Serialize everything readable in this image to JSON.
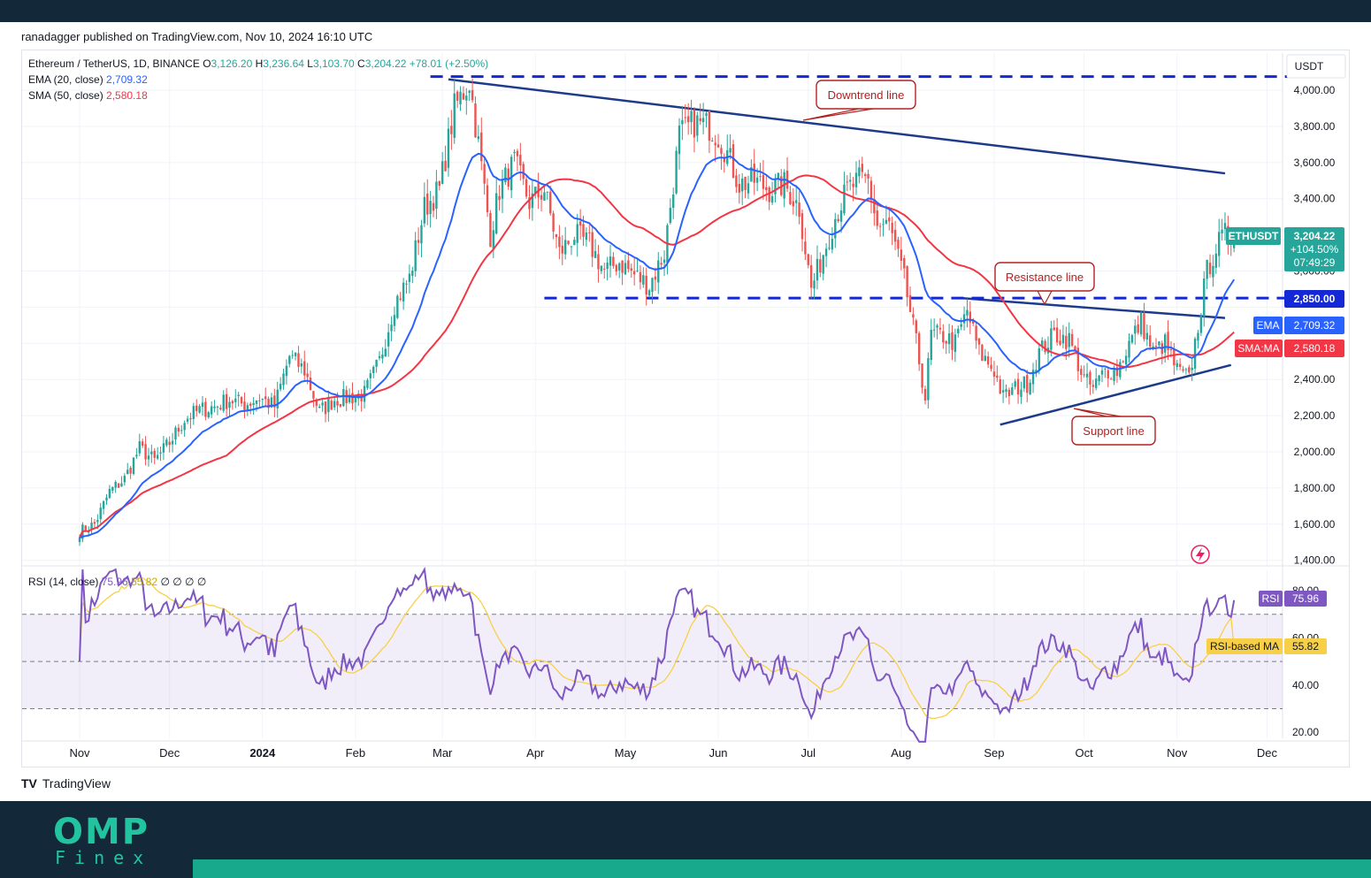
{
  "header": {
    "published": "ranadagger published on TradingView.com, Nov 10, 2024 16:10 UTC"
  },
  "legend": {
    "symbol": "Ethereum / TetherUS, 1D, BINANCE",
    "o_label": "O",
    "o": "3,126.20",
    "h_label": "H",
    "h": "3,236.64",
    "l_label": "L",
    "l": "3,103.70",
    "c_label": "C",
    "c": "3,204.22",
    "change": "+78.01 (+2.50%)",
    "ema_label": "EMA (20, close)",
    "ema_value": "2,709.32",
    "sma_label": "SMA (50, close)",
    "sma_value": "2,580.18",
    "rsi_label": "RSI (14, close)",
    "rsi_value": "75.96",
    "rsi_ma_value": "55.82",
    "rsi_empty": "∅  ∅  ∅  ∅"
  },
  "colors": {
    "up": "#26a69a",
    "down": "#ef5350",
    "ema": "#2962ff",
    "sma": "#f23645",
    "trend": "#1e3a8a",
    "level": "#1428d6",
    "rsi": "#7e57c2",
    "rsi_ma": "#f7d047",
    "callout": "#b22222",
    "bg_dark": "#13293a",
    "brand": "#22c4a0"
  },
  "chart_data": {
    "type": "candlestick",
    "title": "Ethereum / TetherUS, 1D, BINANCE",
    "currency": "USDT",
    "ylim": [
      1400,
      4100
    ],
    "y_ticks": [
      "4,000.00",
      "3,800.00",
      "3,600.00",
      "3,400.00",
      "3,000.00",
      "2,400.00",
      "2,200.00",
      "2,000.00",
      "1,800.00",
      "1,600.00",
      "1,400.00"
    ],
    "y_tick_values": [
      4000,
      3800,
      3600,
      3400,
      3000,
      2400,
      2200,
      2000,
      1800,
      1600,
      1400
    ],
    "x_labels": [
      "Nov",
      "Dec",
      "2024",
      "Feb",
      "Mar",
      "Apr",
      "May",
      "Jun",
      "Jul",
      "Aug",
      "Sep",
      "Oct",
      "Nov",
      "Dec"
    ],
    "x_label_days": [
      0,
      30,
      61,
      92,
      121,
      152,
      182,
      213,
      243,
      274,
      305,
      335,
      366,
      396
    ],
    "start_date": "2023-10-22",
    "days_total": 425,
    "last_day": 385,
    "close_anchors": [
      [
        0,
        1560
      ],
      [
        5,
        1600
      ],
      [
        10,
        1780
      ],
      [
        15,
        1850
      ],
      [
        20,
        2020
      ],
      [
        25,
        1950
      ],
      [
        30,
        2050
      ],
      [
        35,
        2180
      ],
      [
        40,
        2230
      ],
      [
        45,
        2250
      ],
      [
        50,
        2290
      ],
      [
        55,
        2260
      ],
      [
        60,
        2300
      ],
      [
        65,
        2250
      ],
      [
        70,
        2530
      ],
      [
        75,
        2450
      ],
      [
        80,
        2220
      ],
      [
        85,
        2290
      ],
      [
        90,
        2300
      ],
      [
        95,
        2320
      ],
      [
        100,
        2500
      ],
      [
        105,
        2820
      ],
      [
        110,
        2960
      ],
      [
        115,
        3350
      ],
      [
        120,
        3450
      ],
      [
        125,
        3900
      ],
      [
        130,
        4050
      ],
      [
        133,
        3700
      ],
      [
        137,
        3200
      ],
      [
        140,
        3450
      ],
      [
        145,
        3600
      ],
      [
        150,
        3380
      ],
      [
        155,
        3450
      ],
      [
        160,
        3100
      ],
      [
        165,
        3200
      ],
      [
        170,
        3150
      ],
      [
        175,
        3000
      ],
      [
        180,
        3050
      ],
      [
        185,
        2980
      ],
      [
        190,
        2920
      ],
      [
        195,
        3100
      ],
      [
        200,
        3750
      ],
      [
        205,
        3820
      ],
      [
        210,
        3800
      ],
      [
        213,
        3750
      ],
      [
        216,
        3650
      ],
      [
        220,
        3480
      ],
      [
        225,
        3500
      ],
      [
        230,
        3450
      ],
      [
        235,
        3480
      ],
      [
        240,
        3350
      ],
      [
        244,
        2900
      ],
      [
        248,
        3100
      ],
      [
        252,
        3300
      ],
      [
        256,
        3450
      ],
      [
        260,
        3500
      ],
      [
        263,
        3500
      ],
      [
        266,
        3250
      ],
      [
        270,
        3250
      ],
      [
        275,
        2950
      ],
      [
        279,
        2600
      ],
      [
        282,
        2300
      ],
      [
        284,
        2650
      ],
      [
        288,
        2640
      ],
      [
        292,
        2600
      ],
      [
        296,
        2780
      ],
      [
        300,
        2550
      ],
      [
        305,
        2450
      ],
      [
        308,
        2300
      ],
      [
        312,
        2350
      ],
      [
        316,
        2380
      ],
      [
        320,
        2550
      ],
      [
        325,
        2650
      ],
      [
        330,
        2620
      ],
      [
        335,
        2400
      ],
      [
        338,
        2350
      ],
      [
        342,
        2450
      ],
      [
        346,
        2450
      ],
      [
        350,
        2600
      ],
      [
        354,
        2720
      ],
      [
        358,
        2550
      ],
      [
        362,
        2600
      ],
      [
        366,
        2450
      ],
      [
        370,
        2400
      ],
      [
        373,
        2700
      ],
      [
        376,
        3000
      ],
      [
        379,
        3130
      ],
      [
        382,
        3200
      ],
      [
        385,
        3204
      ]
    ],
    "lines": [
      {
        "name": "Downtrend line",
        "points": [
          [
            123,
            4060
          ],
          [
            382,
            3540
          ]
        ],
        "style": "solid"
      },
      {
        "name": "Resistance line",
        "points": [
          [
            294,
            2850
          ],
          [
            382,
            2740
          ]
        ],
        "style": "solid"
      },
      {
        "name": "Support line",
        "points": [
          [
            307,
            2150
          ],
          [
            384,
            2480
          ]
        ],
        "style": "solid"
      },
      {
        "name": "Top level",
        "points": [
          [
            117,
            4075
          ],
          [
            420,
            4075
          ]
        ],
        "style": "dashed"
      },
      {
        "name": "2850 level",
        "points": [
          [
            155,
            2850
          ],
          [
            420,
            2850
          ]
        ],
        "style": "dashed"
      }
    ],
    "callouts": [
      "Downtrend line",
      "Resistance line",
      "Support line"
    ],
    "price_tags": {
      "symbol_tag": "ETHUSDT",
      "last_price": "3,204.22",
      "pct_change": "+104.50%",
      "countdown": "07:49:29",
      "level_price": "2,850.00",
      "ema_tag": "EMA",
      "ema_price": "2,709.32",
      "sma_tag": "SMA:MA",
      "sma_price": "2,580.18"
    },
    "rsi": {
      "ylim": [
        15,
        90
      ],
      "y_ticks": [
        "80.00",
        "60.00",
        "40.00",
        "20.00"
      ],
      "y_tick_values": [
        80,
        60,
        40,
        20
      ],
      "upper": 70,
      "lower": 30,
      "mid": 50,
      "value": "75.96",
      "ma": "55.82",
      "tag": "RSI",
      "ma_tag": "RSI-based MA"
    }
  },
  "footer": {
    "tv_logo": "TV",
    "tv_name": "TradingView",
    "brand_top": "OMP",
    "brand_bottom": "Finex"
  }
}
